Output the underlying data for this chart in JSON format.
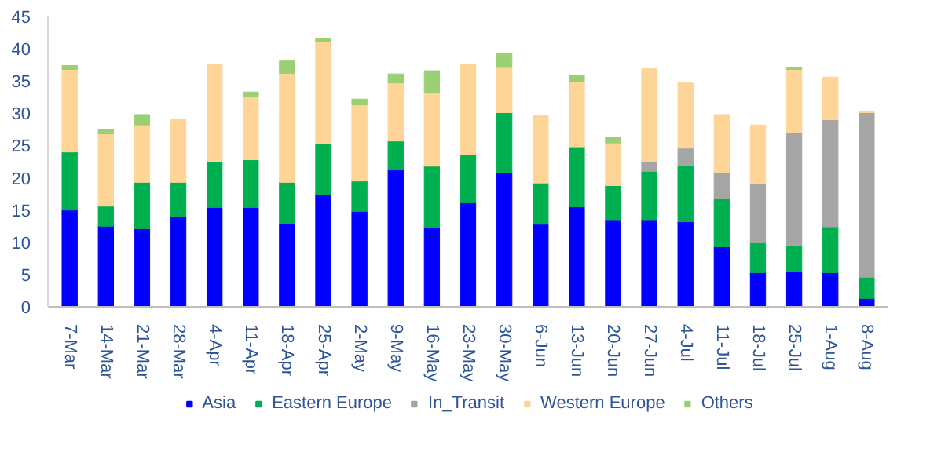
{
  "chart_data": {
    "type": "bar",
    "stacked": true,
    "categories": [
      "7-Mar",
      "14-Mar",
      "21-Mar",
      "28-Mar",
      "4-Apr",
      "11-Apr",
      "18-Apr",
      "25-Apr",
      "2-May",
      "9-May",
      "16-May",
      "23-May",
      "30-May",
      "6-Jun",
      "13-Jun",
      "20-Jun",
      "27-Jun",
      "4-Jul",
      "11-Jul",
      "18-Jul",
      "25-Jul",
      "1-Aug",
      "8-Aug"
    ],
    "series": [
      {
        "name": "Asia",
        "color": "#0000ff",
        "values": [
          15,
          12.5,
          12.1,
          14,
          15.4,
          15.4,
          12.9,
          17.4,
          14.8,
          21.3,
          12.3,
          16.1,
          20.8,
          12.8,
          15.5,
          13.5,
          13.5,
          13.2,
          9.3,
          5.3,
          5.5,
          5.3,
          1.3
        ]
      },
      {
        "name": "Eastern Europe",
        "color": "#00b050",
        "values": [
          9,
          3.1,
          7.2,
          5.3,
          7.1,
          7.4,
          6.4,
          7.9,
          4.7,
          4.4,
          9.5,
          7.5,
          9.3,
          6.4,
          9.3,
          5.3,
          7.5,
          8.7,
          7.5,
          4.6,
          4,
          7.1,
          3.3
        ]
      },
      {
        "name": "In_Transit",
        "color": "#a5a5a5",
        "values": [
          0,
          0,
          0,
          0,
          0,
          0,
          0,
          0,
          0,
          0,
          0,
          0,
          0,
          0,
          0,
          0,
          1.5,
          2.7,
          4,
          9.2,
          17.5,
          16.6,
          25.5
        ]
      },
      {
        "name": "Western Europe",
        "color": "#ffd597",
        "values": [
          12.8,
          11.2,
          8.9,
          9.8,
          15.1,
          9.8,
          16.9,
          15.8,
          11.8,
          9,
          11.4,
          14,
          7,
          10.4,
          10.1,
          6.6,
          14.4,
          10.1,
          9,
          9.1,
          9.8,
          6.6,
          0.2
        ]
      },
      {
        "name": "Others",
        "color": "#9bcf74",
        "values": [
          0.6,
          0.7,
          1.6,
          0,
          0,
          0.7,
          1.9,
          0.5,
          0.9,
          1.4,
          3.4,
          0,
          2.2,
          0,
          1,
          0.9,
          0,
          0,
          0,
          0,
          0.3,
          0,
          0
        ]
      }
    ],
    "ylim": [
      0,
      45
    ],
    "yticks": [
      0,
      5,
      10,
      15,
      20,
      25,
      30,
      35,
      40,
      45
    ],
    "grid": false,
    "legend": "bottom"
  }
}
